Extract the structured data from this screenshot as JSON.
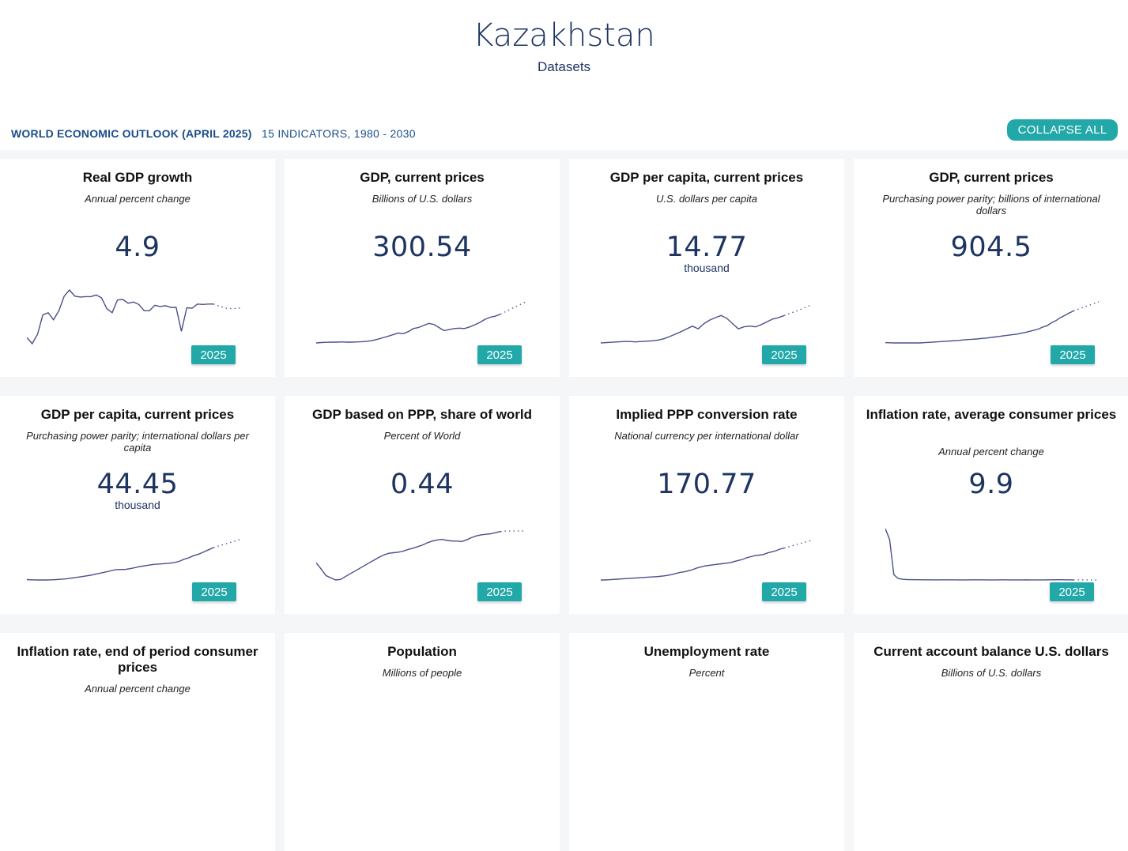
{
  "header": {
    "country": "Kazakhstan",
    "subtitle": "Datasets"
  },
  "dataset": {
    "title": "WORLD ECONOMIC OUTLOOK (APRIL 2025)",
    "meta": "15 INDICATORS, 1980 - 2030",
    "collapse_label": "COLLAPSE ALL"
  },
  "colors": {
    "accent": "#22a8a8",
    "line": "#4b4f8c",
    "navy": "#1e3461"
  },
  "cards": [
    {
      "title": "Real GDP growth",
      "unit": "Annual percent change",
      "value": "4.9",
      "scale": "",
      "year": "2025",
      "series": [
        -4.0,
        -5.5,
        -3.2,
        1.5,
        2.0,
        0.3,
        2.5,
        6.0,
        7.5,
        6.0,
        5.8,
        5.9,
        5.9,
        6.3,
        5.6,
        3.0,
        2.0,
        5.1,
        5.2,
        4.3,
        4.6,
        4.0,
        2.5,
        2.5,
        3.8,
        3.5,
        3.7,
        3.3,
        3.3,
        -2.5,
        3.2,
        3.1,
        4.1,
        4.0,
        4.1,
        4.1
      ],
      "forecast": [
        4.1,
        3.5,
        3.0,
        3.0,
        3.2
      ]
    },
    {
      "title": "GDP, current prices",
      "unit": "Billions of U.S. dollars",
      "value": "300.54",
      "scale": "",
      "year": "2025",
      "series": [
        0,
        2,
        3,
        4,
        4,
        5,
        4,
        4,
        5,
        6,
        8,
        12,
        18,
        25,
        32,
        40,
        48,
        45,
        55,
        70,
        75,
        85,
        95,
        90,
        75,
        60,
        65,
        70,
        72,
        70,
        78,
        88,
        100,
        115,
        125,
        130,
        140
      ],
      "forecast": [
        140,
        155,
        170,
        185,
        200
      ]
    },
    {
      "title": "GDP per capita, current prices",
      "unit": "U.S. dollars per capita",
      "value": "14.77",
      "scale": "thousand",
      "year": "2025",
      "series": [
        0,
        1,
        2,
        3,
        4,
        4,
        3,
        4,
        5,
        6,
        8,
        12,
        18,
        25,
        32,
        40,
        48,
        40,
        55,
        65,
        72,
        78,
        70,
        55,
        40,
        46,
        48,
        46,
        52,
        60,
        68,
        72,
        78
      ],
      "forecast": [
        78,
        85,
        92,
        100,
        108
      ]
    },
    {
      "title": "GDP, current prices",
      "unit": "Purchasing power parity; billions of international dollars",
      "value": "904.5",
      "scale": "",
      "year": "2025",
      "series": [
        0,
        -0.5,
        -1,
        -1,
        -1,
        -1,
        -1,
        -1,
        -1,
        0,
        1,
        2,
        3,
        4,
        5,
        6,
        7,
        8,
        10,
        11,
        12,
        13,
        15,
        16,
        18,
        20,
        22,
        24,
        26,
        28,
        30,
        33,
        36,
        40,
        44,
        48,
        55,
        60,
        70,
        78,
        88,
        96,
        104,
        112
      ],
      "forecast": [
        112,
        120,
        128,
        136,
        144
      ]
    },
    {
      "title": "GDP per capita, current prices",
      "unit": "Purchasing power parity; international dollars per capita",
      "value": "44.45",
      "scale": "thousand",
      "year": "2025",
      "series": [
        0,
        -0.5,
        -1,
        -1,
        -1,
        -0.5,
        0,
        1,
        2,
        4,
        6,
        8,
        10,
        12,
        15,
        18,
        21,
        24,
        27,
        28,
        28,
        30,
        33,
        36,
        38,
        40,
        42,
        43,
        44,
        45,
        47,
        50,
        56,
        60,
        66,
        70,
        76,
        82,
        88
      ],
      "forecast": [
        88,
        94,
        100,
        106,
        112
      ]
    },
    {
      "title": "GDP based on PPP, share of world",
      "unit": "Percent of World",
      "value": "0.44",
      "scale": "",
      "year": "2025",
      "series": [
        0.395,
        0.384,
        0.372,
        0.368,
        0.364,
        0.365,
        0.37,
        0.375,
        0.38,
        0.385,
        0.39,
        0.395,
        0.4,
        0.405,
        0.409,
        0.412,
        0.413,
        0.414,
        0.416,
        0.419,
        0.421,
        0.424,
        0.427,
        0.431,
        0.434,
        0.436,
        0.437,
        0.435,
        0.434,
        0.434,
        0.433,
        0.436,
        0.44,
        0.443,
        0.445,
        0.446,
        0.447,
        0.449,
        0.451
      ],
      "forecast": [
        0.451,
        0.452,
        0.452,
        0.452,
        0.452
      ]
    },
    {
      "title": "Implied PPP conversion rate",
      "unit": "National currency per international dollar",
      "value": "170.77",
      "scale": "",
      "year": "2025",
      "series": [
        0,
        0,
        1,
        2,
        3,
        4,
        5,
        6,
        7,
        8,
        9,
        10,
        11,
        12,
        13,
        15,
        17,
        20,
        24,
        28,
        30,
        34,
        38,
        44,
        48,
        52,
        54,
        56,
        58,
        60,
        62,
        64,
        68,
        72,
        76,
        82,
        86,
        90,
        92,
        94,
        100,
        104,
        108,
        114,
        118
      ],
      "forecast": [
        118,
        125,
        132,
        139,
        146
      ]
    },
    {
      "title": "Inflation rate, average consumer prices",
      "unit": "Annual percent change",
      "value": "9.9",
      "scale": "",
      "year": "2025",
      "series": [
        1900,
        1500,
        200,
        60,
        30,
        20,
        18,
        15,
        14,
        12,
        11,
        10,
        9,
        10,
        11,
        12,
        10,
        9,
        8,
        9,
        10,
        11,
        12,
        10,
        9,
        8,
        9,
        10,
        11,
        9,
        8,
        8,
        9,
        10,
        9,
        8,
        7,
        9,
        10,
        12,
        15,
        14,
        12,
        10,
        9
      ],
      "forecast": [
        9,
        8,
        7,
        6,
        5
      ]
    },
    {
      "title": "Inflation rate, end of period consumer prices",
      "unit": "Annual percent change",
      "value": "",
      "scale": "",
      "year": "",
      "series": [],
      "forecast": []
    },
    {
      "title": "Population",
      "unit": "Millions of people",
      "value": "",
      "scale": "",
      "year": "",
      "series": [],
      "forecast": []
    },
    {
      "title": "Unemployment rate",
      "unit": "Percent",
      "value": "",
      "scale": "",
      "year": "",
      "series": [],
      "forecast": []
    },
    {
      "title": "Current account balance U.S. dollars",
      "unit": "Billions of U.S. dollars",
      "value": "",
      "scale": "",
      "year": "",
      "series": [],
      "forecast": []
    }
  ]
}
